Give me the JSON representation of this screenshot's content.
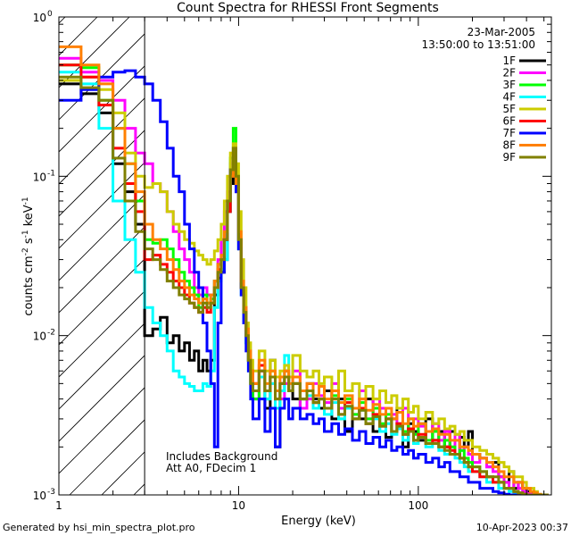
{
  "footer": {
    "generated_by": "Generated by hsi_min_spectra_plot.pro",
    "timestamp": "10-Apr-2023 00:37"
  },
  "chart_data": {
    "type": "line",
    "title": "Count Spectra for RHESSI Front Segments",
    "xlabel": "Energy (keV)",
    "ylabel_main": "counts cm",
    "ylabel_exp1": "-2",
    "ylabel_mid": " s",
    "ylabel_exp2": "-1",
    "ylabel_end": " keV",
    "ylabel_exp3": "-1",
    "x_scale": "log",
    "y_scale": "log",
    "xlim": [
      1,
      550
    ],
    "ylim": [
      0.001,
      1
    ],
    "x_ticks": [
      {
        "value": 1,
        "label": "1"
      },
      {
        "value": 10,
        "label": "10"
      },
      {
        "value": 100,
        "label": "100"
      }
    ],
    "y_ticks": [
      {
        "value": 1,
        "base": "10",
        "exp": "0"
      },
      {
        "value": 0.1,
        "base": "10",
        "exp": "-1"
      },
      {
        "value": 0.01,
        "base": "10",
        "exp": "-2"
      },
      {
        "value": 0.001,
        "base": "10",
        "exp": "-3"
      }
    ],
    "date": "23-Mar-2005",
    "time_range": "13:50:00 to 13:51:00",
    "annotation_line1": "Includes Background",
    "annotation_line2": "Att A0, FDecim 1",
    "hatched_region_xmax": 3,
    "bins_keV": [
      1.0,
      1.33,
      1.67,
      2.0,
      2.33,
      2.67,
      3.0,
      3.33,
      3.67,
      4.0,
      4.33,
      4.67,
      5.0,
      5.33,
      5.67,
      6.0,
      6.33,
      6.67,
      7.0,
      7.33,
      7.67,
      8.0,
      8.33,
      8.67,
      9.0,
      9.33,
      9.67,
      10.0,
      10.33,
      10.67,
      11.0,
      11.33,
      11.67,
      12.0,
      13.0,
      14.0,
      15.0,
      16.0,
      17.0,
      18.0,
      19.0,
      20.0,
      22.0,
      24.0,
      26.0,
      28.0,
      30.0,
      33.0,
      36.0,
      39.0,
      43.0,
      47.0,
      51.0,
      56.0,
      61.0,
      66.0,
      71.0,
      76.0,
      82.0,
      88.0,
      94.0,
      100.0,
      110.0,
      120.0,
      130.0,
      140.0,
      150.0,
      160.0,
      170.0,
      180.0,
      190.0,
      200.0,
      220.0,
      240.0,
      260.0,
      280.0,
      300.0,
      320.0,
      340.0,
      360.0,
      380.0,
      400.0,
      420.0,
      440.0,
      460.0,
      480.0,
      500.0,
      530.0
    ],
    "series": [
      {
        "name": "1F",
        "color": "#000000",
        "values": [
          0.38,
          0.33,
          0.25,
          0.12,
          0.08,
          0.05,
          0.01,
          0.011,
          0.013,
          0.009,
          0.01,
          0.008,
          0.009,
          0.007,
          0.008,
          0.006,
          0.007,
          0.006,
          0.007,
          0.018,
          0.023,
          0.025,
          0.03,
          0.06,
          0.09,
          0.12,
          0.08,
          0.035,
          0.02,
          0.015,
          0.01,
          0.007,
          0.005,
          0.004,
          0.006,
          0.0035,
          0.007,
          0.002,
          0.005,
          0.006,
          0.0045,
          0.004,
          0.0035,
          0.005,
          0.004,
          0.0035,
          0.0045,
          0.003,
          0.004,
          0.0025,
          0.0035,
          0.003,
          0.004,
          0.0025,
          0.0035,
          0.0023,
          0.003,
          0.0035,
          0.002,
          0.0028,
          0.0025,
          0.0022,
          0.003,
          0.0022,
          0.0025,
          0.002,
          0.0025,
          0.0018,
          0.0023,
          0.002,
          0.0025,
          0.0018,
          0.0017,
          0.0015,
          0.0016,
          0.0013,
          0.0012,
          0.0014,
          0.0011,
          0.0012,
          0.0011,
          0.00105,
          0.00102,
          0.00101,
          0.001,
          0.001,
          0.001
        ]
      },
      {
        "name": "2F",
        "color": "#ff00ff",
        "values": [
          0.55,
          0.45,
          0.4,
          0.3,
          0.2,
          0.14,
          0.12,
          0.09,
          0.08,
          0.06,
          0.045,
          0.035,
          0.03,
          0.025,
          0.02,
          0.018,
          0.02,
          0.018,
          0.018,
          0.022,
          0.03,
          0.04,
          0.06,
          0.08,
          0.12,
          0.15,
          0.09,
          0.04,
          0.02,
          0.015,
          0.011,
          0.008,
          0.006,
          0.005,
          0.006,
          0.004,
          0.005,
          0.0035,
          0.004,
          0.005,
          0.0045,
          0.006,
          0.0035,
          0.004,
          0.005,
          0.0042,
          0.0038,
          0.005,
          0.0035,
          0.004,
          0.0032,
          0.0045,
          0.003,
          0.004,
          0.0035,
          0.003,
          0.0032,
          0.0028,
          0.0035,
          0.0025,
          0.003,
          0.0027,
          0.0025,
          0.0028,
          0.0022,
          0.0025,
          0.002,
          0.0024,
          0.0019,
          0.002,
          0.0018,
          0.0016,
          0.0017,
          0.0015,
          0.0014,
          0.0013,
          0.0012,
          0.0011,
          0.0012,
          0.0011,
          0.00105,
          0.00102,
          0.00101,
          0.001,
          0.001,
          0.001,
          0.001
        ]
      },
      {
        "name": "3F",
        "color": "#00ff00",
        "values": [
          0.5,
          0.48,
          0.3,
          0.2,
          0.12,
          0.07,
          0.04,
          0.038,
          0.04,
          0.035,
          0.03,
          0.025,
          0.022,
          0.02,
          0.018,
          0.015,
          0.018,
          0.016,
          0.017,
          0.022,
          0.028,
          0.03,
          0.04,
          0.07,
          0.13,
          0.2,
          0.1,
          0.04,
          0.02,
          0.014,
          0.009,
          0.007,
          0.005,
          0.004,
          0.0055,
          0.004,
          0.006,
          0.0035,
          0.0045,
          0.0055,
          0.0045,
          0.005,
          0.004,
          0.0045,
          0.0038,
          0.004,
          0.0035,
          0.0042,
          0.003,
          0.004,
          0.0032,
          0.0038,
          0.003,
          0.0035,
          0.0028,
          0.0032,
          0.0025,
          0.0028,
          0.0025,
          0.003,
          0.0024,
          0.0028,
          0.0022,
          0.0025,
          0.002,
          0.0022,
          0.002,
          0.0018,
          0.0019,
          0.0017,
          0.0016,
          0.0015,
          0.0014,
          0.0013,
          0.0012,
          0.0012,
          0.0011,
          0.0011,
          0.00105,
          0.00103,
          0.00101,
          0.001,
          0.001,
          0.001,
          0.001,
          0.001,
          0.001
        ]
      },
      {
        "name": "4F",
        "color": "#00ffff",
        "values": [
          0.45,
          0.38,
          0.2,
          0.07,
          0.04,
          0.025,
          0.015,
          0.012,
          0.01,
          0.008,
          0.006,
          0.0055,
          0.005,
          0.0048,
          0.0045,
          0.0045,
          0.005,
          0.0048,
          0.006,
          0.015,
          0.022,
          0.026,
          0.03,
          0.06,
          0.1,
          0.14,
          0.09,
          0.035,
          0.018,
          0.012,
          0.009,
          0.006,
          0.005,
          0.0045,
          0.0055,
          0.004,
          0.005,
          0.0035,
          0.0045,
          0.0075,
          0.0045,
          0.005,
          0.004,
          0.0042,
          0.0035,
          0.004,
          0.0032,
          0.0038,
          0.003,
          0.0035,
          0.003,
          0.0034,
          0.0028,
          0.003,
          0.0025,
          0.0028,
          0.0024,
          0.0026,
          0.0022,
          0.0025,
          0.0021,
          0.0023,
          0.002,
          0.0021,
          0.0019,
          0.0018,
          0.0018,
          0.0017,
          0.0016,
          0.0015,
          0.0014,
          0.0014,
          0.0013,
          0.0012,
          0.0012,
          0.0011,
          0.0011,
          0.00105,
          0.00103,
          0.00102,
          0.00101,
          0.001,
          0.001,
          0.001,
          0.001,
          0.001,
          0.001
        ]
      },
      {
        "name": "5F",
        "color": "#cccc00",
        "values": [
          0.4,
          0.42,
          0.35,
          0.25,
          0.14,
          0.1,
          0.085,
          0.09,
          0.08,
          0.06,
          0.05,
          0.045,
          0.04,
          0.038,
          0.034,
          0.032,
          0.03,
          0.028,
          0.03,
          0.034,
          0.04,
          0.05,
          0.07,
          0.1,
          0.14,
          0.16,
          0.12,
          0.06,
          0.03,
          0.02,
          0.012,
          0.009,
          0.007,
          0.006,
          0.008,
          0.006,
          0.007,
          0.0055,
          0.006,
          0.0065,
          0.0055,
          0.0075,
          0.006,
          0.0055,
          0.006,
          0.005,
          0.0055,
          0.0045,
          0.006,
          0.0045,
          0.005,
          0.004,
          0.0048,
          0.004,
          0.0045,
          0.0038,
          0.0042,
          0.0035,
          0.004,
          0.0033,
          0.0036,
          0.003,
          0.0033,
          0.0028,
          0.003,
          0.0026,
          0.0027,
          0.0024,
          0.0025,
          0.0022,
          0.0022,
          0.002,
          0.0019,
          0.0018,
          0.0017,
          0.0016,
          0.0015,
          0.0014,
          0.0013,
          0.0013,
          0.0012,
          0.0011,
          0.0011,
          0.00105,
          0.001,
          0.001,
          0.001
        ]
      },
      {
        "name": "6F",
        "color": "#ff0000",
        "values": [
          0.5,
          0.42,
          0.28,
          0.15,
          0.09,
          0.06,
          0.03,
          0.032,
          0.028,
          0.025,
          0.022,
          0.02,
          0.018,
          0.016,
          0.015,
          0.014,
          0.015,
          0.014,
          0.016,
          0.02,
          0.026,
          0.03,
          0.04,
          0.06,
          0.1,
          0.14,
          0.09,
          0.04,
          0.02,
          0.014,
          0.01,
          0.007,
          0.006,
          0.005,
          0.0065,
          0.0045,
          0.0055,
          0.004,
          0.005,
          0.0055,
          0.0045,
          0.005,
          0.004,
          0.0045,
          0.0038,
          0.004,
          0.0035,
          0.004,
          0.0032,
          0.0038,
          0.003,
          0.0035,
          0.0028,
          0.0032,
          0.0027,
          0.003,
          0.0025,
          0.0028,
          0.0024,
          0.0026,
          0.0022,
          0.0024,
          0.0021,
          0.0022,
          0.002,
          0.002,
          0.0019,
          0.0018,
          0.0017,
          0.0016,
          0.0015,
          0.0014,
          0.0013,
          0.0013,
          0.0012,
          0.0012,
          0.0011,
          0.0011,
          0.00105,
          0.00103,
          0.00101,
          0.001,
          0.001,
          0.001,
          0.001,
          0.001,
          0.001
        ]
      },
      {
        "name": "7F",
        "color": "#0000ff",
        "values": [
          0.3,
          0.35,
          0.42,
          0.45,
          0.46,
          0.42,
          0.38,
          0.3,
          0.22,
          0.15,
          0.1,
          0.08,
          0.05,
          0.035,
          0.025,
          0.02,
          0.012,
          0.008,
          0.005,
          0.002,
          0.012,
          0.025,
          0.04,
          0.07,
          0.11,
          0.13,
          0.08,
          0.035,
          0.018,
          0.012,
          0.008,
          0.006,
          0.004,
          0.003,
          0.004,
          0.0025,
          0.0035,
          0.002,
          0.0035,
          0.004,
          0.003,
          0.0035,
          0.003,
          0.0032,
          0.0028,
          0.003,
          0.0025,
          0.0028,
          0.0024,
          0.0026,
          0.0022,
          0.0025,
          0.0021,
          0.0023,
          0.002,
          0.0022,
          0.0019,
          0.002,
          0.0018,
          0.0019,
          0.0017,
          0.0018,
          0.0016,
          0.0017,
          0.0015,
          0.0016,
          0.0014,
          0.0014,
          0.0013,
          0.0013,
          0.0012,
          0.0012,
          0.0011,
          0.0011,
          0.00105,
          0.00103,
          0.00101,
          0.001,
          0.001,
          0.001,
          0.001,
          0.001,
          0.001,
          0.001,
          0.001,
          0.001,
          0.001
        ]
      },
      {
        "name": "8F",
        "color": "#ff8000",
        "values": [
          0.65,
          0.5,
          0.38,
          0.2,
          0.12,
          0.08,
          0.05,
          0.04,
          0.035,
          0.03,
          0.026,
          0.022,
          0.02,
          0.018,
          0.017,
          0.016,
          0.017,
          0.016,
          0.018,
          0.022,
          0.028,
          0.032,
          0.045,
          0.07,
          0.1,
          0.14,
          0.09,
          0.045,
          0.022,
          0.015,
          0.011,
          0.008,
          0.006,
          0.005,
          0.007,
          0.005,
          0.006,
          0.0045,
          0.0055,
          0.006,
          0.005,
          0.0055,
          0.0045,
          0.005,
          0.0042,
          0.0048,
          0.004,
          0.0045,
          0.0038,
          0.0042,
          0.0035,
          0.004,
          0.0034,
          0.0037,
          0.0032,
          0.0035,
          0.003,
          0.0033,
          0.0028,
          0.003,
          0.0027,
          0.0028,
          0.0025,
          0.0026,
          0.0024,
          0.0024,
          0.0022,
          0.0022,
          0.002,
          0.002,
          0.0019,
          0.0018,
          0.0017,
          0.0016,
          0.0015,
          0.0014,
          0.0013,
          0.0013,
          0.0012,
          0.0012,
          0.0011,
          0.0011,
          0.00105,
          0.00103,
          0.00101,
          0.001,
          0.001
        ]
      },
      {
        "name": "9F",
        "color": "#808000",
        "values": [
          0.42,
          0.36,
          0.3,
          0.13,
          0.07,
          0.045,
          0.035,
          0.03,
          0.026,
          0.022,
          0.02,
          0.018,
          0.017,
          0.016,
          0.015,
          0.014,
          0.016,
          0.015,
          0.016,
          0.02,
          0.025,
          0.03,
          0.04,
          0.07,
          0.11,
          0.15,
          0.1,
          0.04,
          0.02,
          0.014,
          0.01,
          0.007,
          0.005,
          0.0045,
          0.006,
          0.0045,
          0.0055,
          0.004,
          0.005,
          0.0055,
          0.0045,
          0.005,
          0.004,
          0.0045,
          0.0038,
          0.004,
          0.0035,
          0.004,
          0.0032,
          0.0036,
          0.003,
          0.0034,
          0.0028,
          0.0031,
          0.0027,
          0.003,
          0.0025,
          0.0027,
          0.0024,
          0.0025,
          0.0022,
          0.0023,
          0.0021,
          0.0021,
          0.002,
          0.0019,
          0.0018,
          0.0018,
          0.0017,
          0.0016,
          0.0015,
          0.0015,
          0.0014,
          0.0013,
          0.0013,
          0.0012,
          0.0011,
          0.0011,
          0.00105,
          0.00103,
          0.00101,
          0.001,
          0.001,
          0.001,
          0.001,
          0.001,
          0.001
        ]
      }
    ]
  }
}
